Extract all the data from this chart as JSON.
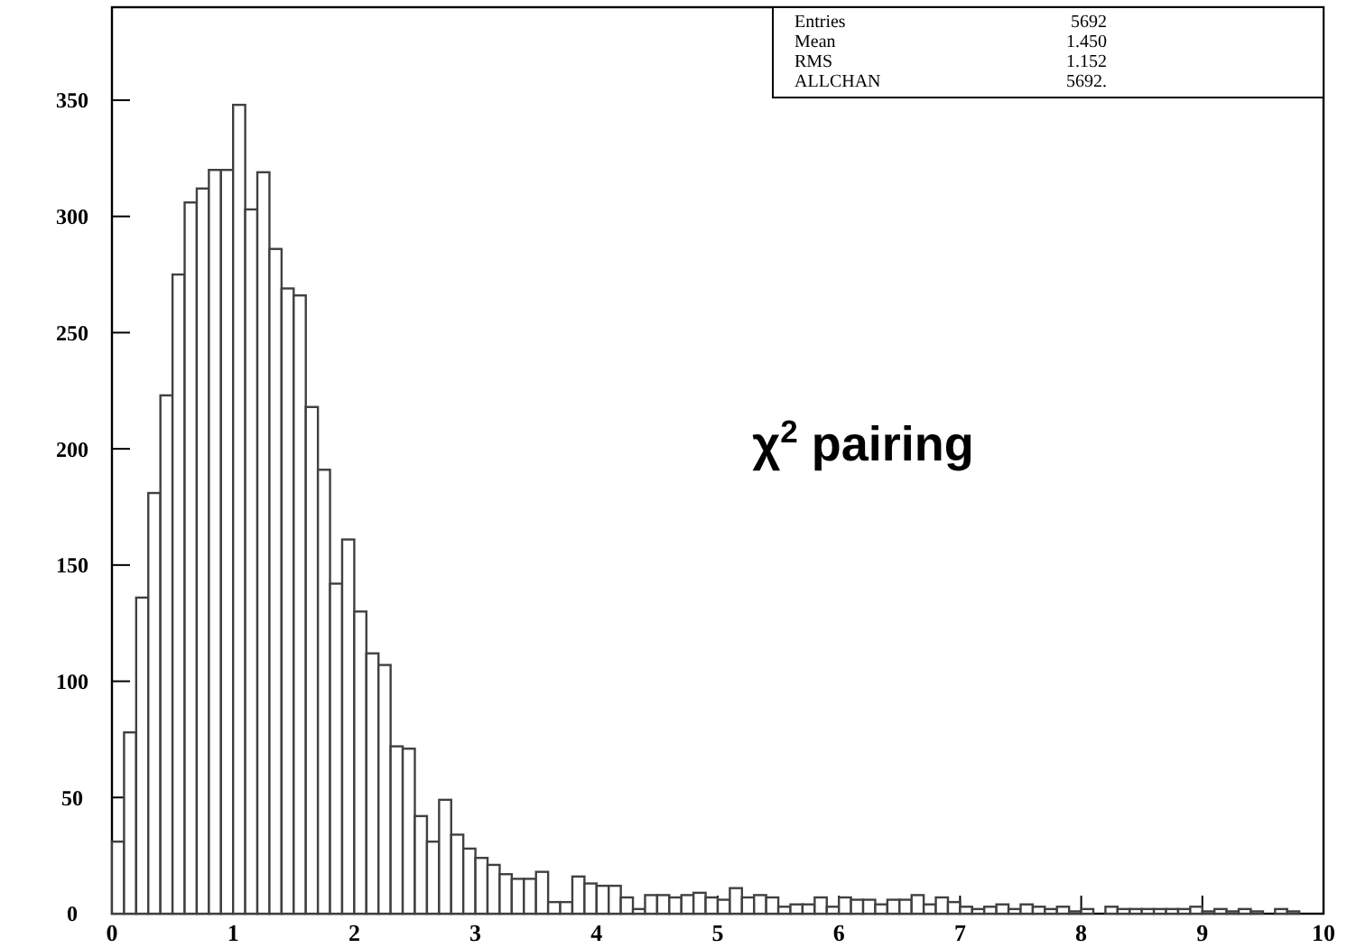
{
  "chart_data": {
    "type": "histogram",
    "bins": [
      0,
      0.1,
      0.2,
      0.3,
      0.4,
      0.5,
      0.6,
      0.7,
      0.8,
      0.9,
      1,
      1.1,
      1.2,
      1.3,
      1.4,
      1.5,
      1.6,
      1.7,
      1.8,
      1.9,
      2,
      2.1,
      2.2,
      2.3,
      2.4,
      2.5,
      2.6,
      2.7,
      2.8,
      2.9,
      3,
      3.1,
      3.2,
      3.3,
      3.4,
      3.5,
      3.6,
      3.7,
      3.8,
      3.9,
      4,
      4.1,
      4.2,
      4.3,
      4.4,
      4.5,
      4.6,
      4.7,
      4.8,
      4.9,
      5,
      5.1,
      5.2,
      5.3,
      5.4,
      5.5,
      5.6,
      5.7,
      5.8,
      5.9,
      6,
      6.1,
      6.2,
      6.3,
      6.4,
      6.5,
      6.6,
      6.7,
      6.8,
      6.9,
      7,
      7.1,
      7.2,
      7.3,
      7.4,
      7.5,
      7.6,
      7.7,
      7.8,
      7.9,
      8,
      8.1,
      8.2,
      8.3,
      8.4,
      8.5,
      8.6,
      8.7,
      8.8,
      8.9,
      9,
      9.1,
      9.2,
      9.3,
      9.4,
      9.5,
      9.6,
      9.7,
      9.8,
      9.9,
      10
    ],
    "values": [
      31,
      78,
      136,
      181,
      223,
      275,
      306,
      312,
      320,
      320,
      348,
      303,
      319,
      286,
      269,
      266,
      218,
      191,
      142,
      161,
      130,
      112,
      107,
      72,
      71,
      42,
      31,
      49,
      34,
      28,
      24,
      21,
      17,
      15,
      15,
      18,
      5,
      5,
      16,
      13,
      12,
      12,
      7,
      2,
      8,
      8,
      7,
      8,
      9,
      7,
      6,
      11,
      7,
      8,
      7,
      3,
      4,
      4,
      7,
      3,
      7,
      6,
      6,
      4,
      6,
      6,
      8,
      4,
      7,
      5,
      3,
      2,
      3,
      4,
      2,
      4,
      3,
      2,
      3,
      1,
      2,
      0,
      3,
      2,
      2,
      2,
      2,
      2,
      2,
      3,
      1,
      2,
      1,
      2,
      1,
      0,
      2,
      1,
      0,
      0
    ],
    "color": "#404040",
    "xlim": [
      0,
      10
    ],
    "xticks": [
      0,
      1,
      2,
      3,
      4,
      5,
      6,
      7,
      8,
      9,
      10
    ],
    "ylim": [
      0,
      390
    ],
    "yticks": [
      0,
      50,
      100,
      150,
      200,
      250,
      300,
      350
    ],
    "annotations": [
      "χ$^{2}$ pairing",
      "Entries",
      "5692",
      "Mean",
      "1.450",
      "RMS",
      "1.152",
      "ALLCHAN",
      "5692."
    ]
  }
}
